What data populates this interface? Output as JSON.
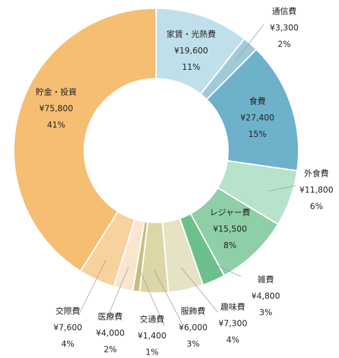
{
  "chart_data": {
    "type": "pie",
    "title": "",
    "start_angle_deg": 0,
    "direction": "clockwise",
    "currency_prefix": "¥",
    "slices": [
      {
        "label": "家賃・光熱費",
        "value": 19600,
        "value_text": "¥19,600",
        "percent_text": "11%",
        "color": "#bfe0ea",
        "label_inside": true
      },
      {
        "label": "通信費",
        "value": 3300,
        "value_text": "¥3,300",
        "percent_text": "2%",
        "color": "#a0cad9",
        "label_inside": false
      },
      {
        "label": "食費",
        "value": 27400,
        "value_text": "¥27,400",
        "percent_text": "15%",
        "color": "#6eb1cb",
        "label_inside": true
      },
      {
        "label": "外食費",
        "value": 11800,
        "value_text": "¥11,800",
        "percent_text": "6%",
        "color": "#b7e2cb",
        "label_inside": false
      },
      {
        "label": "レジャー費",
        "value": 15500,
        "value_text": "¥15,500",
        "percent_text": "8%",
        "color": "#8fcfa8",
        "label_inside": true
      },
      {
        "label": "雑費",
        "value": 4800,
        "value_text": "¥4,800",
        "percent_text": "3%",
        "color": "#6bc08b",
        "label_inside": false
      },
      {
        "label": "趣味費",
        "value": 7300,
        "value_text": "¥7,300",
        "percent_text": "4%",
        "color": "#e6e2c4",
        "label_inside": false
      },
      {
        "label": "服飾費",
        "value": 6000,
        "value_text": "¥6,000",
        "percent_text": "3%",
        "color": "#ddd6a6",
        "label_inside": false
      },
      {
        "label": "交通費",
        "value": 1400,
        "value_text": "¥1,400",
        "percent_text": "1%",
        "color": "#c6be82",
        "label_inside": false
      },
      {
        "label": "医療費",
        "value": 4000,
        "value_text": "¥4,000",
        "percent_text": "2%",
        "color": "#fbe5ce",
        "label_inside": false
      },
      {
        "label": "交際費",
        "value": 7600,
        "value_text": "¥7,600",
        "percent_text": "4%",
        "color": "#f8d29e",
        "label_inside": false
      },
      {
        "label": "貯金・投資",
        "value": 75800,
        "value_text": "¥75,800",
        "percent_text": "41%",
        "color": "#f5be72",
        "label_inside": true
      }
    ]
  }
}
